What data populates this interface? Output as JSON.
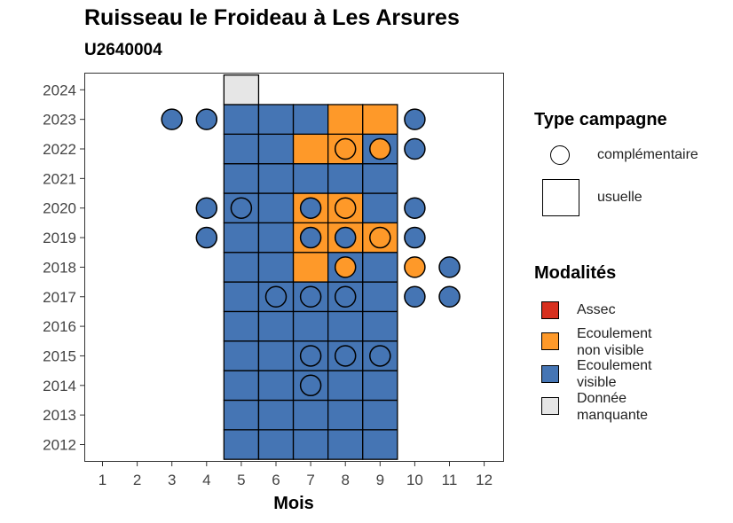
{
  "chart_data": {
    "type": "heatmap",
    "title": "Ruisseau le Froideau à Les Arsures",
    "subtitle": "U2640004",
    "xlabel": "Mois",
    "ylabel": "",
    "x_ticks": [
      "1",
      "2",
      "3",
      "4",
      "5",
      "6",
      "7",
      "8",
      "9",
      "10",
      "11",
      "12"
    ],
    "y_ticks": [
      "2012",
      "2013",
      "2014",
      "2015",
      "2016",
      "2017",
      "2018",
      "2019",
      "2020",
      "2021",
      "2022",
      "2023",
      "2024"
    ],
    "xlim": [
      0.5,
      12.5
    ],
    "ylim": [
      2011.5,
      2024.5
    ],
    "colors": {
      "Assec": "#d7301f",
      "Ecoulement non visible": "#fe9929",
      "Ecoulement visible": "#4575b4",
      "Donnée manquante": "#e6e6e6"
    },
    "usuelle": [
      {
        "year": 2012,
        "month": 5,
        "status": "Ecoulement visible"
      },
      {
        "year": 2012,
        "month": 6,
        "status": "Ecoulement visible"
      },
      {
        "year": 2012,
        "month": 7,
        "status": "Ecoulement visible"
      },
      {
        "year": 2012,
        "month": 8,
        "status": "Ecoulement visible"
      },
      {
        "year": 2012,
        "month": 9,
        "status": "Ecoulement visible"
      },
      {
        "year": 2013,
        "month": 5,
        "status": "Ecoulement visible"
      },
      {
        "year": 2013,
        "month": 6,
        "status": "Ecoulement visible"
      },
      {
        "year": 2013,
        "month": 7,
        "status": "Ecoulement visible"
      },
      {
        "year": 2013,
        "month": 8,
        "status": "Ecoulement visible"
      },
      {
        "year": 2013,
        "month": 9,
        "status": "Ecoulement visible"
      },
      {
        "year": 2014,
        "month": 5,
        "status": "Ecoulement visible"
      },
      {
        "year": 2014,
        "month": 6,
        "status": "Ecoulement visible"
      },
      {
        "year": 2014,
        "month": 7,
        "status": "Ecoulement visible"
      },
      {
        "year": 2014,
        "month": 8,
        "status": "Ecoulement visible"
      },
      {
        "year": 2014,
        "month": 9,
        "status": "Ecoulement visible"
      },
      {
        "year": 2015,
        "month": 5,
        "status": "Ecoulement visible"
      },
      {
        "year": 2015,
        "month": 6,
        "status": "Ecoulement visible"
      },
      {
        "year": 2015,
        "month": 7,
        "status": "Ecoulement visible"
      },
      {
        "year": 2015,
        "month": 8,
        "status": "Ecoulement visible"
      },
      {
        "year": 2015,
        "month": 9,
        "status": "Ecoulement visible"
      },
      {
        "year": 2016,
        "month": 5,
        "status": "Ecoulement visible"
      },
      {
        "year": 2016,
        "month": 6,
        "status": "Ecoulement visible"
      },
      {
        "year": 2016,
        "month": 7,
        "status": "Ecoulement visible"
      },
      {
        "year": 2016,
        "month": 8,
        "status": "Ecoulement visible"
      },
      {
        "year": 2016,
        "month": 9,
        "status": "Ecoulement visible"
      },
      {
        "year": 2017,
        "month": 5,
        "status": "Ecoulement visible"
      },
      {
        "year": 2017,
        "month": 6,
        "status": "Ecoulement visible"
      },
      {
        "year": 2017,
        "month": 7,
        "status": "Ecoulement visible"
      },
      {
        "year": 2017,
        "month": 8,
        "status": "Ecoulement visible"
      },
      {
        "year": 2017,
        "month": 9,
        "status": "Ecoulement visible"
      },
      {
        "year": 2018,
        "month": 5,
        "status": "Ecoulement visible"
      },
      {
        "year": 2018,
        "month": 6,
        "status": "Ecoulement visible"
      },
      {
        "year": 2018,
        "month": 7,
        "status": "Ecoulement non visible"
      },
      {
        "year": 2018,
        "month": 8,
        "status": "Ecoulement visible"
      },
      {
        "year": 2018,
        "month": 9,
        "status": "Ecoulement visible"
      },
      {
        "year": 2019,
        "month": 5,
        "status": "Ecoulement visible"
      },
      {
        "year": 2019,
        "month": 6,
        "status": "Ecoulement visible"
      },
      {
        "year": 2019,
        "month": 7,
        "status": "Ecoulement non visible"
      },
      {
        "year": 2019,
        "month": 8,
        "status": "Ecoulement non visible"
      },
      {
        "year": 2019,
        "month": 9,
        "status": "Ecoulement non visible"
      },
      {
        "year": 2020,
        "month": 5,
        "status": "Ecoulement visible"
      },
      {
        "year": 2020,
        "month": 6,
        "status": "Ecoulement visible"
      },
      {
        "year": 2020,
        "month": 7,
        "status": "Ecoulement non visible"
      },
      {
        "year": 2020,
        "month": 8,
        "status": "Ecoulement non visible"
      },
      {
        "year": 2020,
        "month": 9,
        "status": "Ecoulement visible"
      },
      {
        "year": 2021,
        "month": 5,
        "status": "Ecoulement visible"
      },
      {
        "year": 2021,
        "month": 6,
        "status": "Ecoulement visible"
      },
      {
        "year": 2021,
        "month": 7,
        "status": "Ecoulement visible"
      },
      {
        "year": 2021,
        "month": 8,
        "status": "Ecoulement visible"
      },
      {
        "year": 2021,
        "month": 9,
        "status": "Ecoulement visible"
      },
      {
        "year": 2022,
        "month": 5,
        "status": "Ecoulement visible"
      },
      {
        "year": 2022,
        "month": 6,
        "status": "Ecoulement visible"
      },
      {
        "year": 2022,
        "month": 7,
        "status": "Ecoulement non visible"
      },
      {
        "year": 2022,
        "month": 8,
        "status": "Ecoulement non visible"
      },
      {
        "year": 2022,
        "month": 9,
        "status": "Ecoulement visible"
      },
      {
        "year": 2023,
        "month": 5,
        "status": "Ecoulement visible"
      },
      {
        "year": 2023,
        "month": 6,
        "status": "Ecoulement visible"
      },
      {
        "year": 2023,
        "month": 7,
        "status": "Ecoulement visible"
      },
      {
        "year": 2023,
        "month": 8,
        "status": "Ecoulement non visible"
      },
      {
        "year": 2023,
        "month": 9,
        "status": "Ecoulement non visible"
      },
      {
        "year": 2024,
        "month": 5,
        "status": "Donnée manquante"
      }
    ],
    "complementaire": [
      {
        "year": 2023,
        "month": 3,
        "status": "Ecoulement visible"
      },
      {
        "year": 2023,
        "month": 4,
        "status": "Ecoulement visible"
      },
      {
        "year": 2023,
        "month": 10,
        "status": "Ecoulement visible"
      },
      {
        "year": 2022,
        "month": 8,
        "status": "Ecoulement non visible"
      },
      {
        "year": 2022,
        "month": 9,
        "status": "Ecoulement non visible"
      },
      {
        "year": 2022,
        "month": 10,
        "status": "Ecoulement visible"
      },
      {
        "year": 2020,
        "month": 4,
        "status": "Ecoulement visible"
      },
      {
        "year": 2020,
        "month": 5,
        "status": "Ecoulement visible"
      },
      {
        "year": 2020,
        "month": 7,
        "status": "Ecoulement visible"
      },
      {
        "year": 2020,
        "month": 8,
        "status": "Ecoulement non visible"
      },
      {
        "year": 2020,
        "month": 10,
        "status": "Ecoulement visible"
      },
      {
        "year": 2019,
        "month": 4,
        "status": "Ecoulement visible"
      },
      {
        "year": 2019,
        "month": 7,
        "status": "Ecoulement visible"
      },
      {
        "year": 2019,
        "month": 8,
        "status": "Ecoulement visible"
      },
      {
        "year": 2019,
        "month": 9,
        "status": "Ecoulement non visible"
      },
      {
        "year": 2019,
        "month": 10,
        "status": "Ecoulement visible"
      },
      {
        "year": 2018,
        "month": 8,
        "status": "Ecoulement non visible"
      },
      {
        "year": 2018,
        "month": 10,
        "status": "Ecoulement non visible"
      },
      {
        "year": 2018,
        "month": 11,
        "status": "Ecoulement visible"
      },
      {
        "year": 2017,
        "month": 6,
        "status": "Ecoulement visible"
      },
      {
        "year": 2017,
        "month": 7,
        "status": "Ecoulement visible"
      },
      {
        "year": 2017,
        "month": 8,
        "status": "Ecoulement visible"
      },
      {
        "year": 2017,
        "month": 10,
        "status": "Ecoulement visible"
      },
      {
        "year": 2017,
        "month": 11,
        "status": "Ecoulement visible"
      },
      {
        "year": 2015,
        "month": 7,
        "status": "Ecoulement visible"
      },
      {
        "year": 2015,
        "month": 8,
        "status": "Ecoulement visible"
      },
      {
        "year": 2015,
        "month": 9,
        "status": "Ecoulement visible"
      },
      {
        "year": 2014,
        "month": 7,
        "status": "Ecoulement visible"
      }
    ]
  },
  "legend": {
    "type_title": "Type campagne",
    "type_items": [
      "complémentaire",
      "usuelle"
    ],
    "modalites_title": "Modalités",
    "modalites_items": [
      {
        "label": "Assec",
        "color": "#d7301f"
      },
      {
        "label": "Ecoulement\nnon visible",
        "color": "#fe9929"
      },
      {
        "label": "Ecoulement\nvisible",
        "color": "#4575b4"
      },
      {
        "label": "Donnée\nmanquante",
        "color": "#e6e6e6"
      }
    ]
  }
}
